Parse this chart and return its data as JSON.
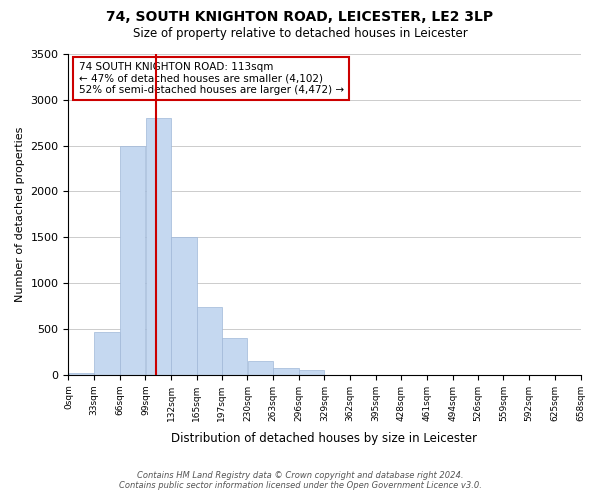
{
  "title": "74, SOUTH KNIGHTON ROAD, LEICESTER, LE2 3LP",
  "subtitle": "Size of property relative to detached houses in Leicester",
  "xlabel": "Distribution of detached houses by size in Leicester",
  "ylabel": "Number of detached properties",
  "bar_left_edges": [
    0,
    33,
    66,
    99,
    132,
    165,
    197,
    230,
    263,
    296,
    329,
    362,
    395,
    428,
    461,
    494,
    526,
    559,
    592,
    625
  ],
  "bar_widths": [
    33,
    33,
    33,
    33,
    33,
    32,
    33,
    33,
    33,
    33,
    33,
    33,
    33,
    33,
    33,
    32,
    33,
    33,
    33,
    33
  ],
  "bar_heights": [
    25,
    470,
    2500,
    2800,
    1500,
    740,
    400,
    150,
    75,
    50,
    0,
    0,
    0,
    0,
    0,
    0,
    0,
    0,
    0,
    0
  ],
  "tick_labels": [
    "0sqm",
    "33sqm",
    "66sqm",
    "99sqm",
    "132sqm",
    "165sqm",
    "197sqm",
    "230sqm",
    "263sqm",
    "296sqm",
    "329sqm",
    "362sqm",
    "395sqm",
    "428sqm",
    "461sqm",
    "494sqm",
    "526sqm",
    "559sqm",
    "592sqm",
    "625sqm",
    "658sqm"
  ],
  "tick_positions": [
    0,
    33,
    66,
    99,
    132,
    165,
    197,
    230,
    263,
    296,
    329,
    362,
    395,
    428,
    461,
    494,
    526,
    559,
    592,
    625,
    658
  ],
  "ylim": [
    0,
    3500
  ],
  "bar_color": "#c5d8f0",
  "bar_edge_color": "#a0b8d8",
  "property_line_x": 113,
  "property_line_color": "#cc0000",
  "annotation_title": "74 SOUTH KNIGHTON ROAD: 113sqm",
  "annotation_line1": "← 47% of detached houses are smaller (4,102)",
  "annotation_line2": "52% of semi-detached houses are larger (4,472) →",
  "annotation_box_color": "#ffffff",
  "annotation_box_edge": "#cc0000",
  "footnote1": "Contains HM Land Registry data © Crown copyright and database right 2024.",
  "footnote2": "Contains public sector information licensed under the Open Government Licence v3.0.",
  "grid_color": "#cccccc",
  "background_color": "#ffffff"
}
